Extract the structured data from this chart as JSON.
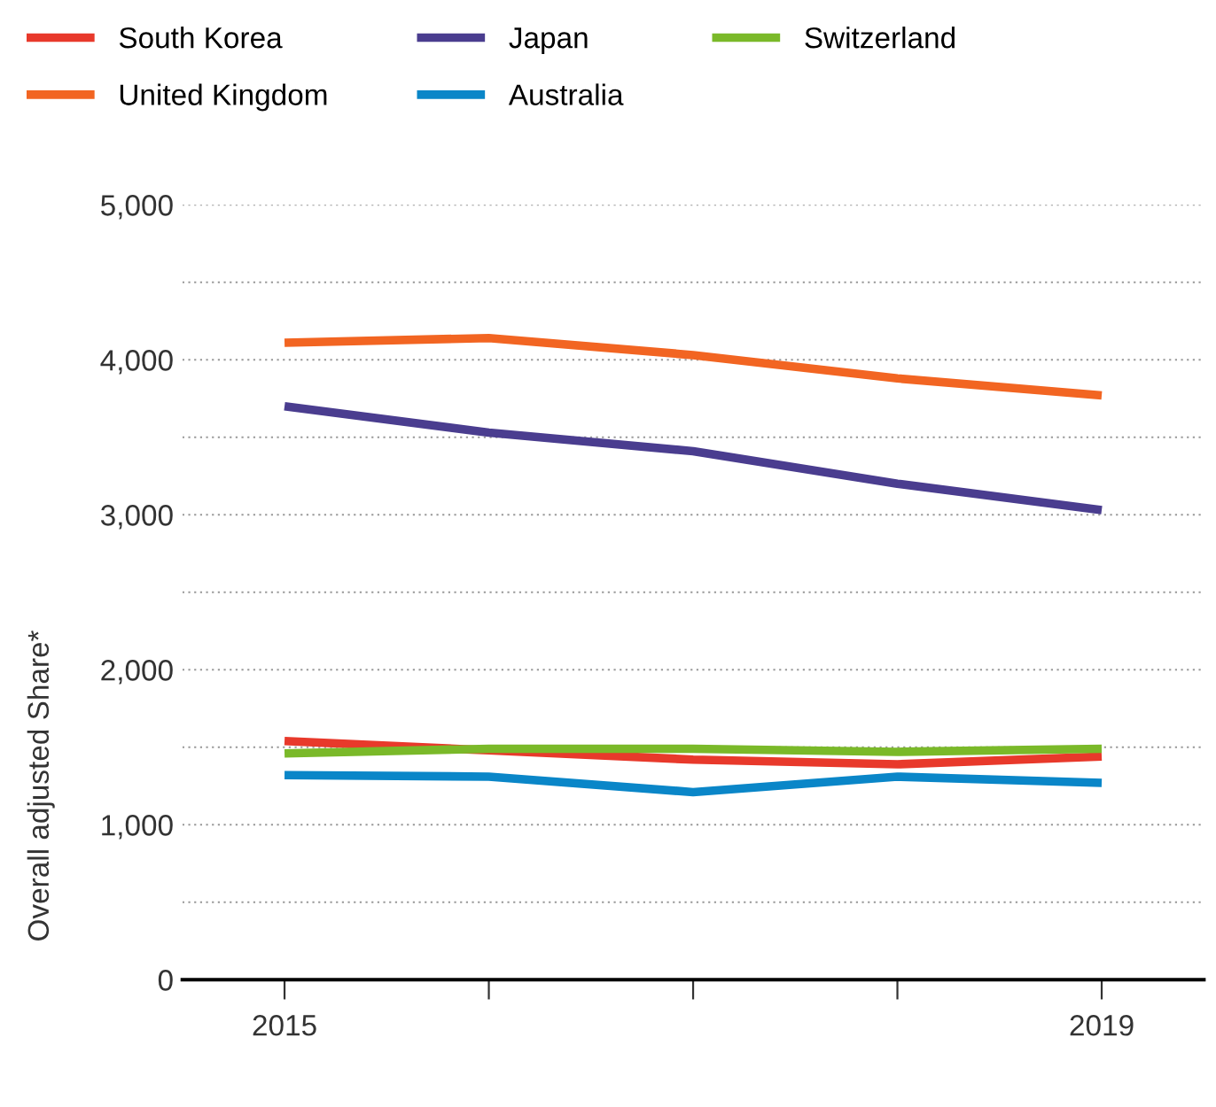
{
  "chart_data": {
    "type": "line",
    "ylabel": "Overall adjusted Share*",
    "x": [
      2015,
      2016,
      2017,
      2018,
      2019
    ],
    "xlim": [
      2014.5,
      2019.5
    ],
    "xticks": [
      2015,
      {
        "value": 2016,
        "label": null
      },
      {
        "value": 2017,
        "label": null
      },
      {
        "value": 2018,
        "label": null
      },
      2019
    ],
    "ylim": [
      0,
      5000
    ],
    "yticks": [
      {
        "value": 0,
        "label": "0"
      },
      {
        "value": 500,
        "label": null
      },
      {
        "value": 1000,
        "label": "1,000"
      },
      {
        "value": 1500,
        "label": null
      },
      {
        "value": 2000,
        "label": "2,000"
      },
      {
        "value": 2500,
        "label": null
      },
      {
        "value": 3000,
        "label": "3,000"
      },
      {
        "value": 3500,
        "label": null
      },
      {
        "value": 4000,
        "label": "4,000"
      },
      {
        "value": 4500,
        "label": null
      },
      {
        "value": 5000,
        "label": "5,000"
      }
    ],
    "grid": "y",
    "legend": "top left",
    "marker": "none",
    "line_style": "solid",
    "series": [
      {
        "name": "South Korea",
        "color": "#e8392b",
        "values": [
          1540,
          1480,
          1420,
          1390,
          1440
        ]
      },
      {
        "name": "Japan",
        "color": "#4a3d8f",
        "values": [
          3700,
          3530,
          3410,
          3200,
          3030
        ]
      },
      {
        "name": "Switzerland",
        "color": "#7ab929",
        "values": [
          1460,
          1490,
          1490,
          1470,
          1490
        ]
      },
      {
        "name": "United Kingdom",
        "color": "#f26522",
        "values": [
          4110,
          4140,
          4030,
          3880,
          3770
        ]
      },
      {
        "name": "Australia",
        "color": "#0a86c8",
        "values": [
          1320,
          1310,
          1210,
          1310,
          1270
        ]
      }
    ]
  }
}
